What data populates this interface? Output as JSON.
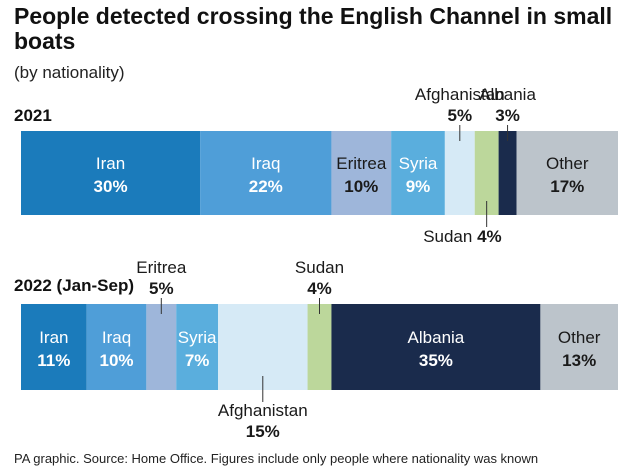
{
  "title": "People detected crossing the English Channel in small boats",
  "subtitle": "(by nationality)",
  "source": "PA graphic. Source: Home Office. Figures include only people where nationality was known",
  "colors": {
    "Iran": "#1b7bbb",
    "Iraq": "#4f9ed8",
    "Eritrea": "#9eb6da",
    "Syria": "#5aaedd",
    "Afghanistan": "#d6eaf6",
    "Sudan": "#bcd79b",
    "Albania": "#1a2b4c",
    "Other": "#bcc4cb"
  },
  "chart_data": {
    "type": "bar",
    "stacked": true,
    "orientation": "horizontal",
    "unit": "%",
    "rows": [
      {
        "label": "2021",
        "segments": [
          {
            "name": "Iran",
            "value": 30,
            "label_pos": "inside"
          },
          {
            "name": "Iraq",
            "value": 22,
            "label_pos": "inside"
          },
          {
            "name": "Eritrea",
            "value": 10,
            "label_pos": "inside"
          },
          {
            "name": "Syria",
            "value": 9,
            "label_pos": "inside"
          },
          {
            "name": "Afghanistan",
            "value": 5,
            "label_pos": "above"
          },
          {
            "name": "Sudan",
            "value": 4,
            "label_pos": "below"
          },
          {
            "name": "Albania",
            "value": 3,
            "label_pos": "above"
          },
          {
            "name": "Other",
            "value": 17,
            "label_pos": "inside"
          }
        ]
      },
      {
        "label": "2022 (Jan-Sep)",
        "segments": [
          {
            "name": "Iran",
            "value": 11,
            "label_pos": "inside"
          },
          {
            "name": "Iraq",
            "value": 10,
            "label_pos": "inside"
          },
          {
            "name": "Eritrea",
            "value": 5,
            "label_pos": "above"
          },
          {
            "name": "Syria",
            "value": 7,
            "label_pos": "inside"
          },
          {
            "name": "Afghanistan",
            "value": 15,
            "label_pos": "below"
          },
          {
            "name": "Sudan",
            "value": 4,
            "label_pos": "above"
          },
          {
            "name": "Albania",
            "value": 35,
            "label_pos": "inside"
          },
          {
            "name": "Other",
            "value": 13,
            "label_pos": "inside"
          }
        ]
      }
    ]
  }
}
